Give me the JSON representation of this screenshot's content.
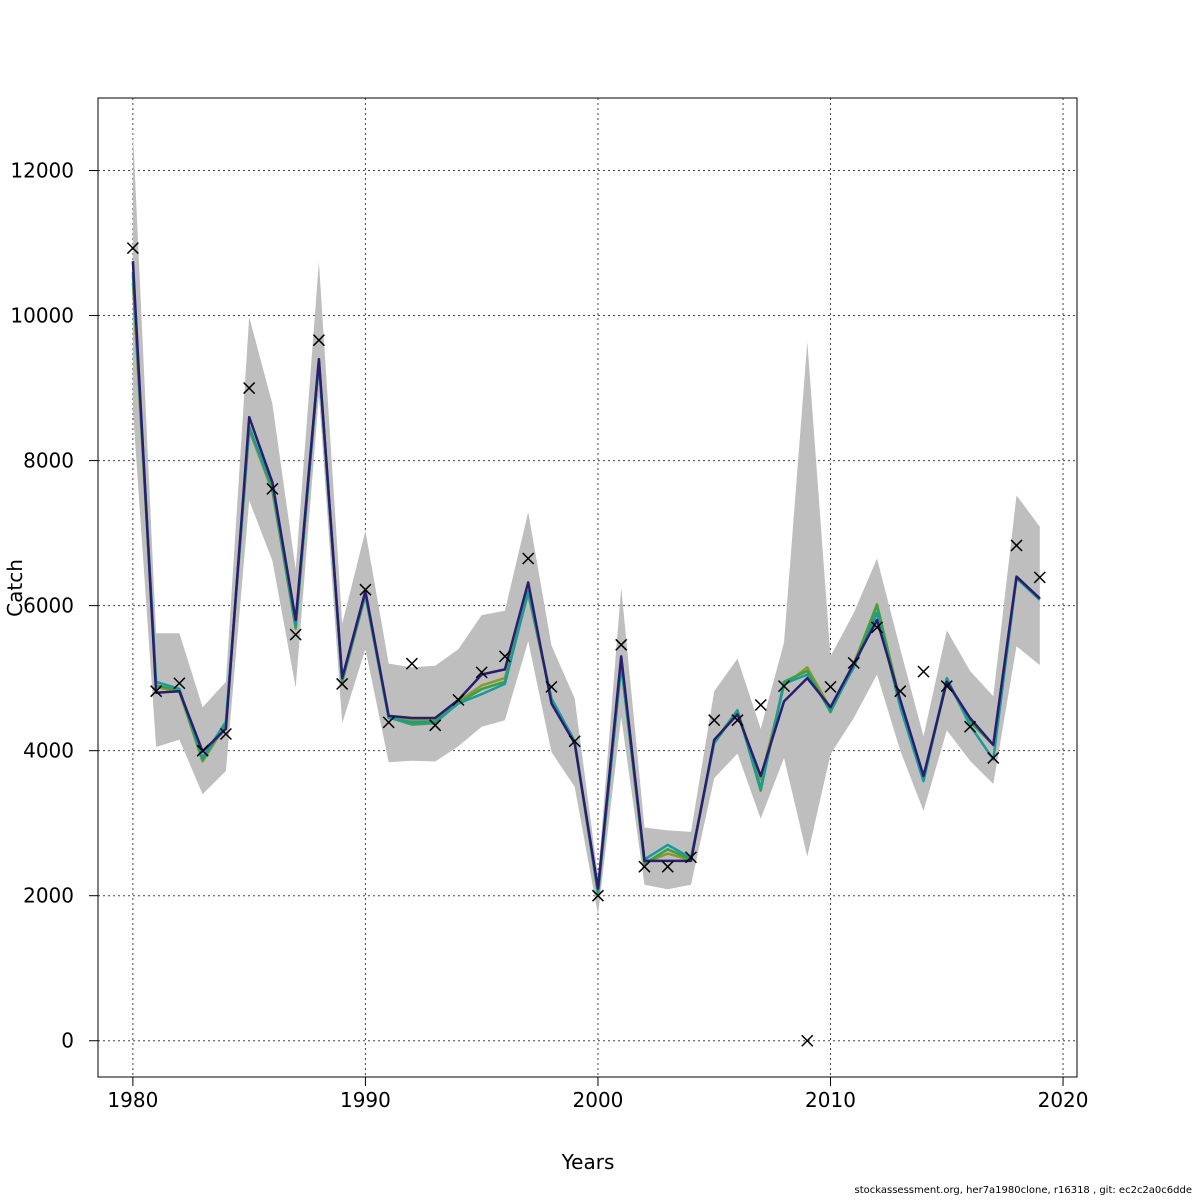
{
  "chart_data": {
    "type": "line",
    "title": "",
    "xlabel": "Years",
    "ylabel": "Catch",
    "xlim": [
      1978.5,
      2020.6
    ],
    "ylim": [
      -500,
      13000
    ],
    "xticks": [
      1980,
      1990,
      2000,
      2010,
      2020
    ],
    "yticks": [
      0,
      2000,
      4000,
      6000,
      8000,
      10000,
      12000
    ],
    "grid": true,
    "legend": "none",
    "band": {
      "x": [
        1980,
        1981,
        1982,
        1983,
        1984,
        1985,
        1986,
        1987,
        1988,
        1989,
        1990,
        1991,
        1992,
        1993,
        1994,
        1995,
        1996,
        1997,
        1998,
        1999,
        2000,
        2001,
        2002,
        2003,
        2004,
        2005,
        2006,
        2007,
        2008,
        2009,
        2010,
        2011,
        2012,
        2013,
        2014,
        2015,
        2016,
        2017,
        2018,
        2019
      ],
      "upper": [
        12550,
        5620,
        5620,
        4600,
        4950,
        9980,
        8780,
        6500,
        10740,
        5750,
        7030,
        5200,
        5150,
        5170,
        5400,
        5870,
        5930,
        7290,
        5450,
        4720,
        2270,
        6250,
        2940,
        2900,
        2880,
        4820,
        5270,
        4300,
        5490,
        9640,
        5300,
        5900,
        6650,
        5400,
        4200,
        5660,
        5100,
        4750,
        7520,
        7090
      ],
      "lower": [
        8700,
        4050,
        4150,
        3400,
        3720,
        7450,
        6620,
        4870,
        8900,
        4380,
        5400,
        3840,
        3860,
        3850,
        4060,
        4330,
        4420,
        5510,
        3980,
        3500,
        1740,
        4460,
        2150,
        2090,
        2150,
        3620,
        3960,
        3060,
        3900,
        2540,
        3950,
        4450,
        5050,
        4000,
        3170,
        4280,
        3860,
        3540,
        5440,
        5180
      ]
    },
    "series": [
      {
        "color": "#2a1d6e",
        "values": [
          10750,
          4800,
          4820,
          3990,
          4300,
          8600,
          7700,
          5800,
          9400,
          5000,
          6200,
          4480,
          4450,
          4450,
          4700,
          5050,
          5120,
          6320,
          4650,
          4100,
          2100,
          5300,
          2480,
          2480,
          2480,
          4150,
          4500,
          3650,
          4680,
          5000,
          4600,
          5200,
          5800,
          4700,
          3650,
          4950,
          4450,
          4080,
          6400,
          6100
        ]
      },
      {
        "color": "#1a9a9a",
        "values": [
          10600,
          4950,
          4850,
          3900,
          4400,
          8450,
          7650,
          5720,
          9350,
          4980,
          6150,
          4450,
          4390,
          4400,
          4650,
          4780,
          4920,
          6200,
          4720,
          4130,
          2050,
          5180,
          2500,
          2700,
          2520,
          4100,
          4550,
          3480,
          4920,
          5050,
          4560,
          5150,
          5900,
          4600,
          3580,
          5000,
          4350,
          3880,
          6380,
          6080
        ]
      },
      {
        "color": "#3aa046",
        "values": [
          10550,
          4900,
          4830,
          3870,
          4380,
          8470,
          7600,
          5700,
          9380,
          4960,
          6170,
          4460,
          4360,
          4380,
          4660,
          4850,
          4950,
          6180,
          4710,
          4120,
          2030,
          5200,
          2440,
          2640,
          2500,
          4120,
          4560,
          3450,
          4950,
          5100,
          4530,
          5180,
          6000,
          4650,
          3600,
          4960,
          4400,
          4080,
          6380,
          6090
        ]
      },
      {
        "color": "#8a9a2a",
        "values": [
          10450,
          4880,
          4810,
          3850,
          4360,
          8420,
          7580,
          5680,
          9360,
          4950,
          6140,
          4450,
          4420,
          4420,
          4680,
          4900,
          5000,
          6170,
          4700,
          4110,
          2020,
          5180,
          2450,
          2580,
          2490,
          4130,
          4540,
          3600,
          4900,
          5150,
          4580,
          5200,
          6020,
          4680,
          3620,
          4950,
          4420,
          4080,
          6390,
          6100
        ]
      }
    ],
    "observed": {
      "x": [
        1980,
        1981,
        1982,
        1983,
        1984,
        1985,
        1986,
        1987,
        1988,
        1989,
        1990,
        1991,
        1992,
        1993,
        1994,
        1995,
        1996,
        1997,
        1998,
        1999,
        2000,
        2001,
        2002,
        2003,
        2004,
        2005,
        2006,
        2007,
        2008,
        2009,
        2010,
        2011,
        2012,
        2013,
        2014,
        2015,
        2016,
        2017,
        2018,
        2019
      ],
      "y": [
        10930,
        4820,
        4930,
        4000,
        4230,
        9000,
        7610,
        5600,
        9660,
        4920,
        6220,
        4390,
        5200,
        4350,
        4700,
        5080,
        5300,
        6650,
        4880,
        4130,
        2000,
        5460,
        2400,
        2400,
        2530,
        4420,
        4420,
        4630,
        4890,
        0,
        4880,
        5210,
        5700,
        4820,
        5090,
        4890,
        4330,
        3900,
        6830,
        6390
      ]
    }
  },
  "footer": "stockassessment.org, her7a1980clone, r16318 , git: ec2c2a0c6dde"
}
